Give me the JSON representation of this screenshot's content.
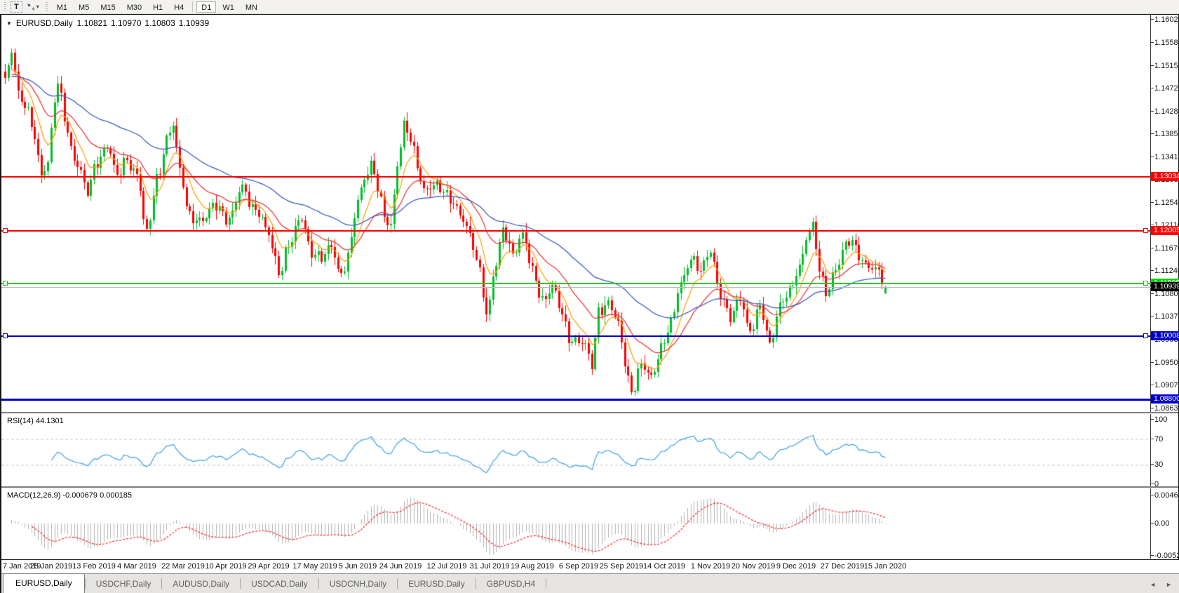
{
  "toolbar": {
    "text_tool_label": "T",
    "arrow_tool_caret": "▾",
    "timeframes": [
      {
        "label": "M1",
        "active": false
      },
      {
        "label": "M5",
        "active": false
      },
      {
        "label": "M15",
        "active": false
      },
      {
        "label": "M30",
        "active": false
      },
      {
        "label": "H1",
        "active": false
      },
      {
        "label": "H4",
        "active": false
      },
      {
        "label": "D1",
        "active": true
      },
      {
        "label": "W1",
        "active": false
      },
      {
        "label": "MN",
        "active": false
      }
    ]
  },
  "chart": {
    "title": {
      "dropdown_icon": "▼",
      "symbol_period": "EURUSD,Daily",
      "open": "1.10821",
      "high": "1.10970",
      "low": "1.10803",
      "close": "1.10939"
    },
    "price_axis": {
      "p_top": 1.1612,
      "p_bottom": 1.0856,
      "ticks": [
        "1.16020",
        "1.15580",
        "1.15150",
        "1.14720",
        "1.14280",
        "1.13850",
        "1.13410",
        "1.12980",
        "1.12540",
        "1.12110",
        "1.11670",
        "1.11240",
        "1.10800",
        "1.10370",
        "1.09930",
        "1.09500",
        "1.09070",
        "1.08630"
      ]
    },
    "hlines": [
      {
        "price": 1.13034,
        "label": "1.13034",
        "color": "#ff0000",
        "thickness": 2,
        "handles": false
      },
      {
        "price": 1.12005,
        "label": "1.12005",
        "color": "#ff0000",
        "thickness": 2,
        "handles": true
      },
      {
        "price": 1.11009,
        "label": "1.11009",
        "color": "#00d200",
        "thickness": 2,
        "handles": true
      },
      {
        "price": 1.10008,
        "label": "1.10008",
        "color": "#0000c8",
        "thickness": 2,
        "handles": true
      },
      {
        "price": 1.088,
        "label": "1.08800",
        "color": "#0000c8",
        "thickness": 3,
        "handles": false
      }
    ],
    "current_price": {
      "value": 1.10939,
      "label": "1.10939",
      "line_color": "#b8b8b8",
      "label_bg": "#000000"
    },
    "candle_up_color": "#00bf2a",
    "candle_down_color": "#ff0000",
    "moving_averages": [
      {
        "name": "ma-fast",
        "color": "#ff9d00",
        "period": 8
      },
      {
        "name": "ma-medium",
        "color": "#e62e2e",
        "period": 21
      },
      {
        "name": "ma-slow",
        "color": "#3351c4",
        "period": 55
      }
    ]
  },
  "chart_data": {
    "type": "candlestick",
    "symbol": "EURUSD",
    "period": "Daily",
    "bars": 268,
    "last_bar_ohlc": {
      "open": 1.10821,
      "high": 1.1097,
      "low": 1.10803,
      "close": 1.10939
    },
    "close_path_anchors": [
      [
        0,
        1.1478
      ],
      [
        2,
        1.1548
      ],
      [
        4,
        1.1468
      ],
      [
        6,
        1.144
      ],
      [
        8,
        1.1398
      ],
      [
        11,
        1.1312
      ],
      [
        13,
        1.1335
      ],
      [
        15,
        1.1452
      ],
      [
        16,
        1.1478
      ],
      [
        18,
        1.1415
      ],
      [
        20,
        1.1358
      ],
      [
        22,
        1.133
      ],
      [
        25,
        1.1272
      ],
      [
        28,
        1.1332
      ],
      [
        31,
        1.1368
      ],
      [
        34,
        1.1302
      ],
      [
        37,
        1.1335
      ],
      [
        40,
        1.1312
      ],
      [
        43,
        1.1192
      ],
      [
        46,
        1.1298
      ],
      [
        49,
        1.1378
      ],
      [
        51,
        1.1402
      ],
      [
        53,
        1.1308
      ],
      [
        56,
        1.1232
      ],
      [
        60,
        1.1218
      ],
      [
        64,
        1.1252
      ],
      [
        68,
        1.1222
      ],
      [
        72,
        1.1282
      ],
      [
        76,
        1.1242
      ],
      [
        80,
        1.1192
      ],
      [
        82,
        1.1148
      ],
      [
        83,
        1.1125
      ],
      [
        86,
        1.1172
      ],
      [
        90,
        1.1225
      ],
      [
        93,
        1.1162
      ],
      [
        96,
        1.1145
      ],
      [
        99,
        1.1172
      ],
      [
        102,
        1.1118
      ],
      [
        104,
        1.1152
      ],
      [
        107,
        1.1255
      ],
      [
        109,
        1.1305
      ],
      [
        111,
        1.1332
      ],
      [
        113,
        1.1282
      ],
      [
        115,
        1.1222
      ],
      [
        117,
        1.1212
      ],
      [
        119,
        1.1332
      ],
      [
        121,
        1.1402
      ],
      [
        123,
        1.1372
      ],
      [
        125,
        1.1322
      ],
      [
        127,
        1.1282
      ],
      [
        130,
        1.1288
      ],
      [
        133,
        1.1272
      ],
      [
        136,
        1.1258
      ],
      [
        139,
        1.1222
      ],
      [
        141,
        1.1185
      ],
      [
        144,
        1.1128
      ],
      [
        146,
        1.1045
      ],
      [
        149,
        1.1135
      ],
      [
        151,
        1.1202
      ],
      [
        154,
        1.1162
      ],
      [
        157,
        1.1192
      ],
      [
        160,
        1.1122
      ],
      [
        163,
        1.1072
      ],
      [
        166,
        1.1092
      ],
      [
        169,
        1.1042
      ],
      [
        171,
        1.0998
      ],
      [
        174,
        1.0992
      ],
      [
        176,
        1.0978
      ],
      [
        178,
        1.0942
      ],
      [
        180,
        1.1052
      ],
      [
        183,
        1.1062
      ],
      [
        186,
        1.1022
      ],
      [
        188,
        1.0952
      ],
      [
        190,
        1.0896
      ],
      [
        193,
        1.0942
      ],
      [
        196,
        1.0922
      ],
      [
        199,
        1.0982
      ],
      [
        202,
        1.1022
      ],
      [
        205,
        1.1102
      ],
      [
        208,
        1.1152
      ],
      [
        211,
        1.1122
      ],
      [
        214,
        1.1162
      ],
      [
        217,
        1.1082
      ],
      [
        220,
        1.1032
      ],
      [
        223,
        1.1072
      ],
      [
        226,
        1.1012
      ],
      [
        229,
        1.1052
      ],
      [
        232,
        1.0988
      ],
      [
        235,
        1.1062
      ],
      [
        238,
        1.1082
      ],
      [
        241,
        1.1132
      ],
      [
        243,
        1.1192
      ],
      [
        245,
        1.1212
      ],
      [
        247,
        1.1122
      ],
      [
        249,
        1.1082
      ],
      [
        252,
        1.1132
      ],
      [
        255,
        1.1172
      ],
      [
        257,
        1.1178
      ],
      [
        259,
        1.1155
      ],
      [
        261,
        1.114
      ],
      [
        263,
        1.1128
      ],
      [
        265,
        1.112
      ],
      [
        267,
        1.10939
      ]
    ],
    "x_ticks": [
      {
        "bar": 0,
        "label": "7 Jan 2019"
      },
      {
        "bar": 14,
        "label": "25 Jan 2019"
      },
      {
        "bar": 27,
        "label": "13 Feb 2019"
      },
      {
        "bar": 40,
        "label": "4 Mar 2019"
      },
      {
        "bar": 54,
        "label": "22 Mar 2019"
      },
      {
        "bar": 67,
        "label": "10 Apr 2019"
      },
      {
        "bar": 80,
        "label": "29 Apr 2019"
      },
      {
        "bar": 94,
        "label": "17 May 2019"
      },
      {
        "bar": 107,
        "label": "5 Jun 2019"
      },
      {
        "bar": 120,
        "label": "24 Jun 2019"
      },
      {
        "bar": 134,
        "label": "12 Jul 2019"
      },
      {
        "bar": 147,
        "label": "31 Jul 2019"
      },
      {
        "bar": 160,
        "label": "19 Aug 2019"
      },
      {
        "bar": 174,
        "label": "6 Sep 2019"
      },
      {
        "bar": 187,
        "label": "25 Sep 2019"
      },
      {
        "bar": 200,
        "label": "14 Oct 2019"
      },
      {
        "bar": 214,
        "label": "1 Nov 2019"
      },
      {
        "bar": 227,
        "label": "20 Nov 2019"
      },
      {
        "bar": 240,
        "label": "9 Dec 2019"
      },
      {
        "bar": 254,
        "label": "27 Dec 2019"
      },
      {
        "bar": 267,
        "label": "15 Jan 2020"
      }
    ]
  },
  "rsi": {
    "label": "RSI(14) 44.1301",
    "period": 14,
    "value": "44.1301",
    "line_color": "#3d9fe8",
    "level_color": "#c8c8c8",
    "levels": [
      {
        "value": 100,
        "label": "100",
        "dashed": false
      },
      {
        "value": 70,
        "label": "70",
        "dashed": true
      },
      {
        "value": 30,
        "label": "30",
        "dashed": true
      },
      {
        "value": 0,
        "label": "0",
        "dashed": false
      }
    ]
  },
  "macd": {
    "label": "MACD(12,26,9) -0.000679 0.000185",
    "main_value": "-0.000679",
    "signal_value": "0.000185",
    "hist_color": "#b2b2b2",
    "signal_color": "#ff2020",
    "axis": [
      {
        "value": 0.00463,
        "label": "0.00463"
      },
      {
        "value": 0.0,
        "label": "0.00"
      },
      {
        "value": -0.00529,
        "label": "-0.00529"
      }
    ]
  },
  "tabs": {
    "items": [
      {
        "label": "EURUSD,Daily",
        "active": true
      },
      {
        "label": "USDCHF,Daily",
        "active": false
      },
      {
        "label": "AUDUSD,Daily",
        "active": false
      },
      {
        "label": "USDCAD,Daily",
        "active": false
      },
      {
        "label": "USDCNH,Daily",
        "active": false
      },
      {
        "label": "EURUSD,Daily",
        "active": false
      },
      {
        "label": "GBPUSD,H4",
        "active": false
      }
    ],
    "scroll_left": "◄",
    "scroll_right": "►"
  }
}
